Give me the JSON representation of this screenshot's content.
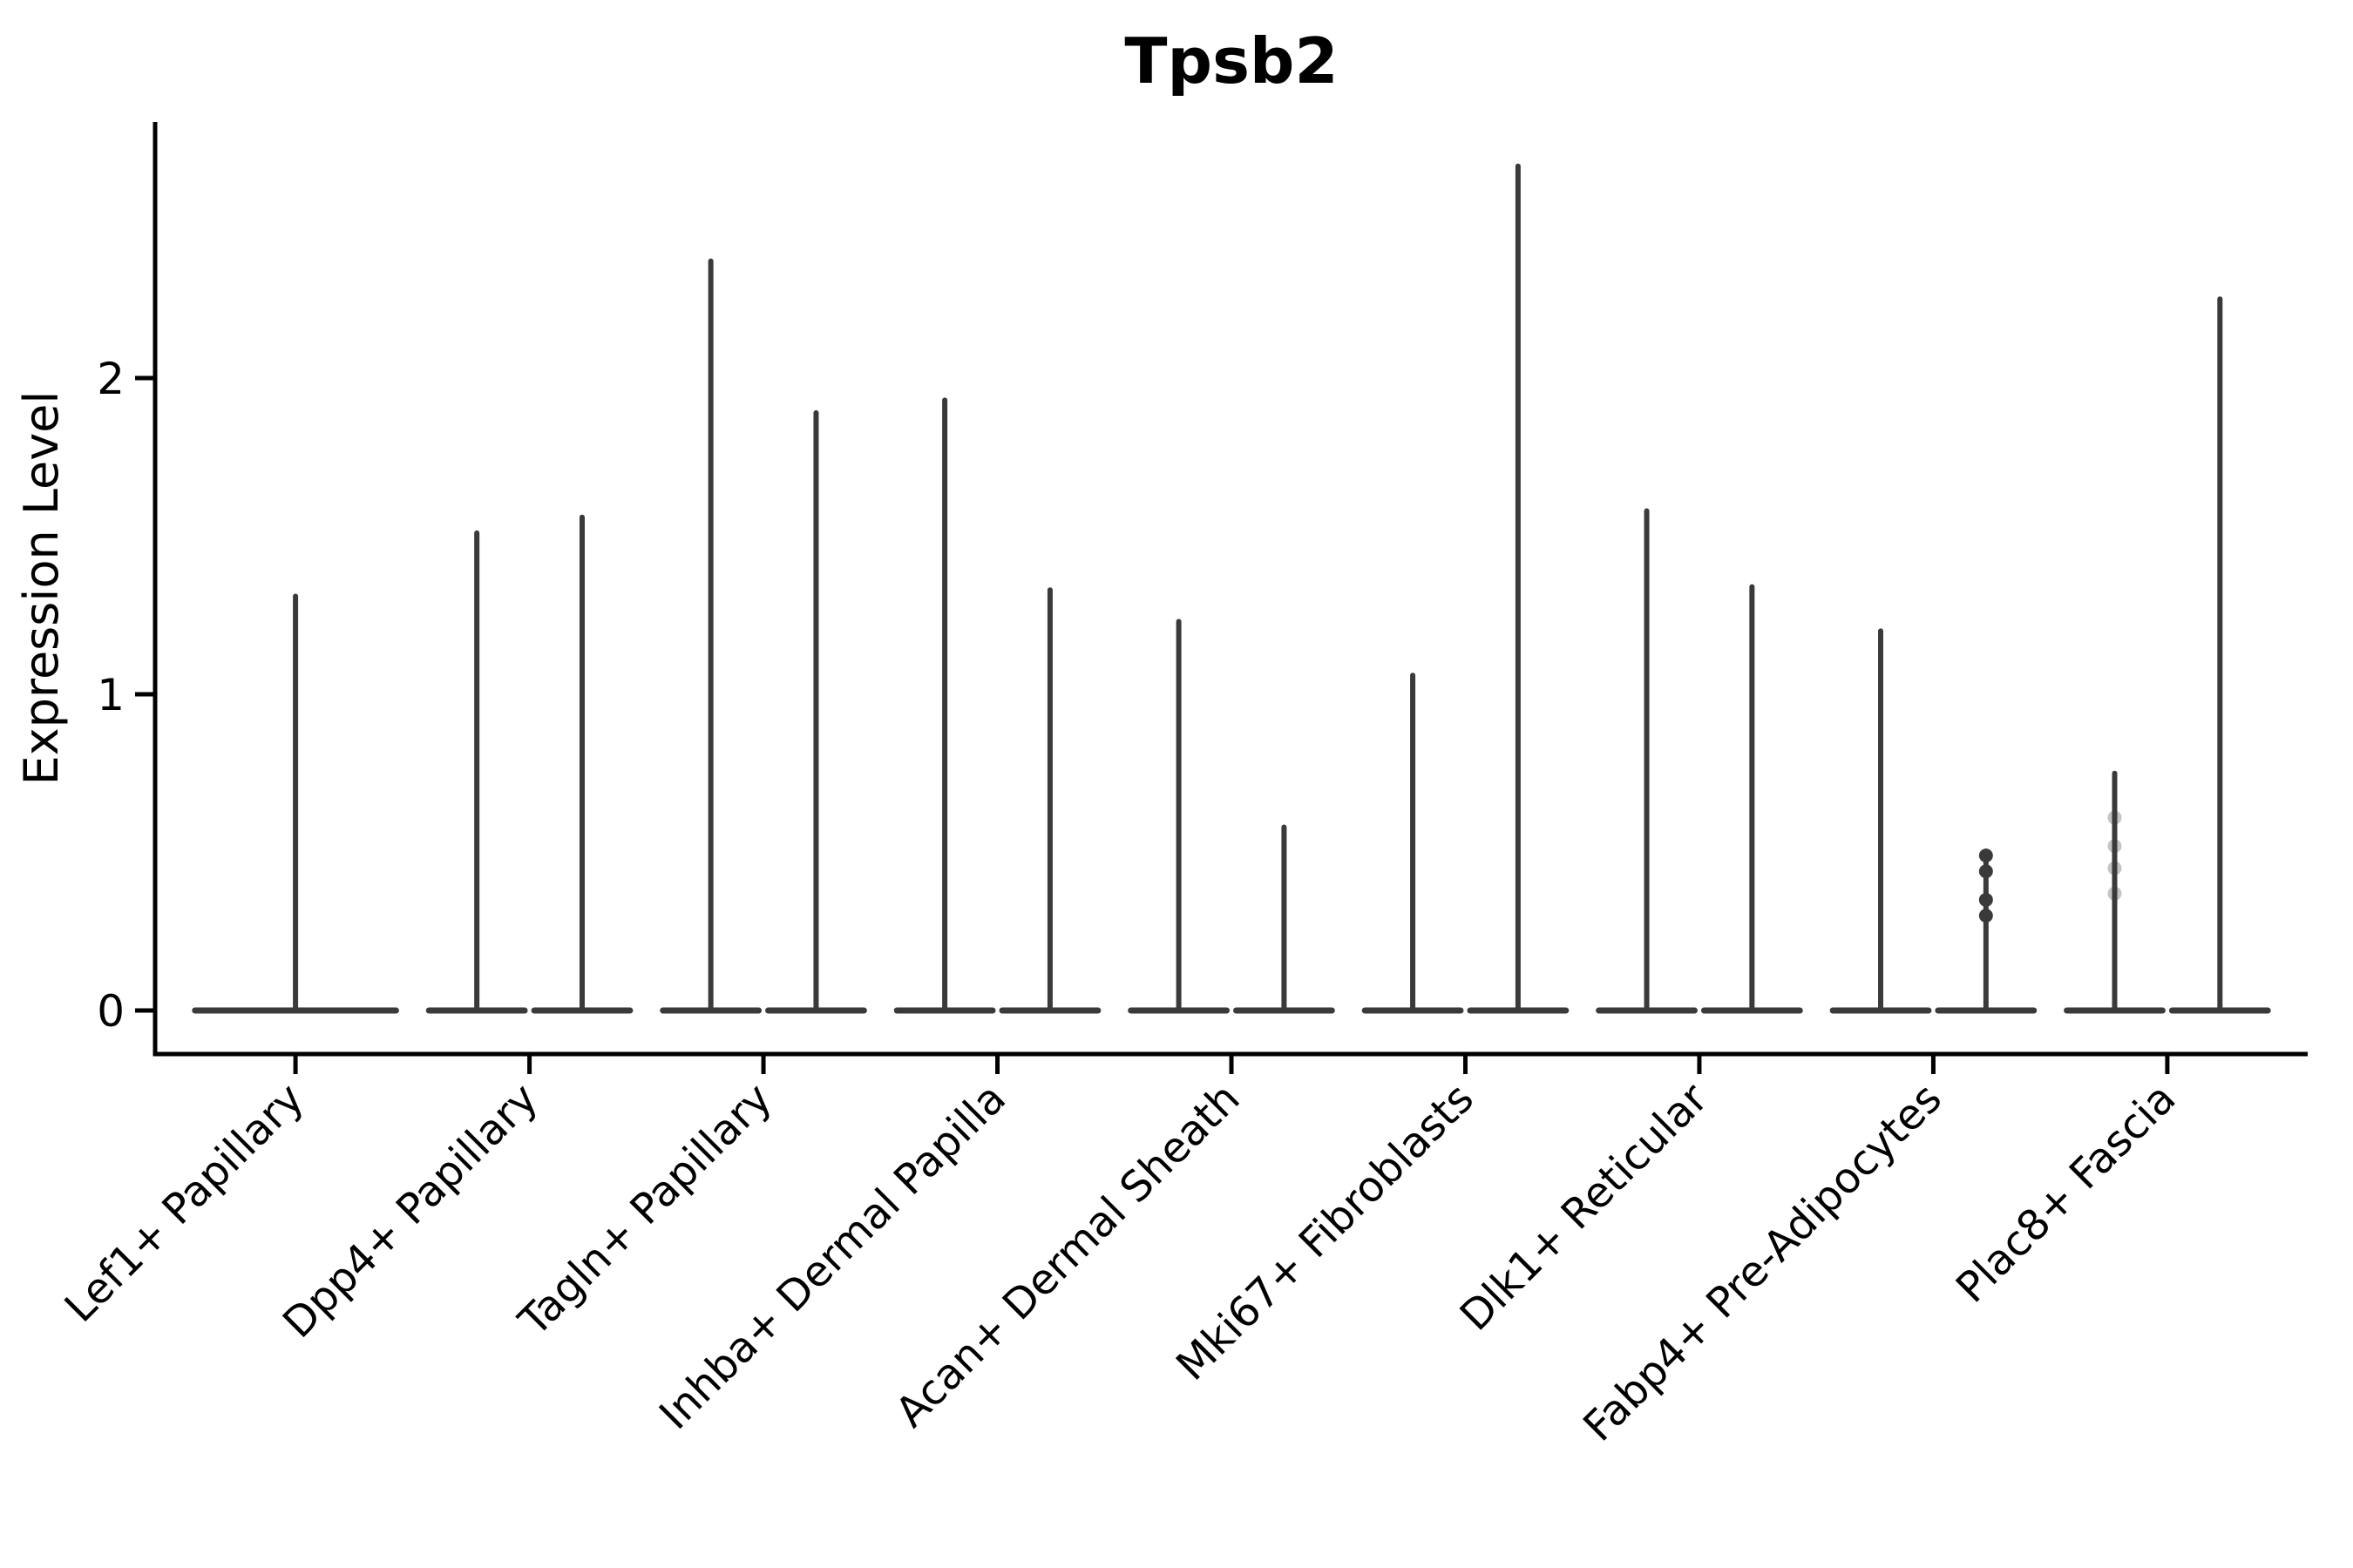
{
  "figure": {
    "title": "Tpsb2",
    "ylabel": "Expression Level"
  },
  "chart_data": {
    "type": "violin",
    "title": "Tpsb2",
    "subtitle": "",
    "xlabel": "",
    "ylabel": "Expression Level",
    "yticks": [
      0,
      1,
      2
    ],
    "ylim": [
      -0.13,
      2.81
    ],
    "grid": false,
    "legend_position": "none",
    "violin_color": "#3a3a3a",
    "axis_color": "#000000",
    "categories": [
      "Lef1+ Papillary",
      "Dpp4+ Papillary",
      "Tagln+ Papillary",
      "Inhba+ Dermal Papilla",
      "Acan+ Dermal Sheath",
      "Mki67+ Fibroblasts",
      "Dlk1+ Reticular",
      "Fabp4+ Pre-Adipocytes",
      "Plac8+ Fascia"
    ],
    "groups": [
      {
        "category": "Lef1+ Papillary",
        "violins": [
          {
            "max": 1.31
          }
        ]
      },
      {
        "category": "Dpp4+ Papillary",
        "violins": [
          {
            "max": 1.51
          },
          {
            "max": 1.56
          }
        ]
      },
      {
        "category": "Tagln+ Papillary",
        "violins": [
          {
            "max": 2.37
          },
          {
            "max": 1.89
          }
        ]
      },
      {
        "category": "Inhba+ Dermal Papilla",
        "violins": [
          {
            "max": 1.93
          },
          {
            "max": 1.33
          }
        ]
      },
      {
        "category": "Acan+ Dermal Sheath",
        "violins": [
          {
            "max": 1.23
          },
          {
            "max": 0.58
          }
        ]
      },
      {
        "category": "Mki67+ Fibroblasts",
        "violins": [
          {
            "max": 1.06
          },
          {
            "max": 2.67
          }
        ]
      },
      {
        "category": "Dlk1+ Reticular",
        "violins": [
          {
            "max": 1.58
          },
          {
            "max": 1.34
          }
        ]
      },
      {
        "category": "Fabp4+ Pre-Adipocytes",
        "violins": [
          {
            "max": 1.2
          },
          {
            "max": 0.49,
            "points": [
              0.49,
              0.44,
              0.35,
              0.3
            ],
            "points_opacity": 1
          }
        ]
      },
      {
        "category": "Plac8+ Fascia",
        "violins": [
          {
            "max": 0.75,
            "points": [
              0.61,
              0.52,
              0.45,
              0.37
            ],
            "points_opacity": 0.3
          },
          {
            "max": 2.25
          }
        ]
      }
    ]
  }
}
